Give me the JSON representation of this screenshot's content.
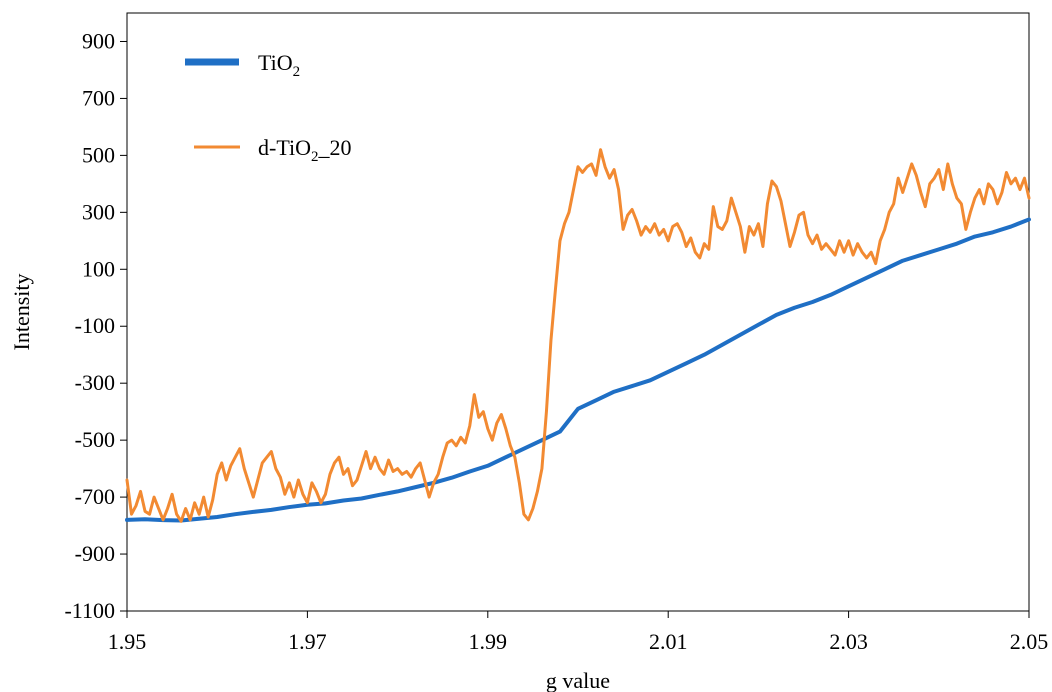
{
  "chart_data": {
    "type": "line",
    "xlabel": "g value",
    "ylabel": "Intensity",
    "xlim": [
      1.95,
      2.05
    ],
    "ylim": [
      -1100,
      1000
    ],
    "x_ticks": [
      1.95,
      1.97,
      1.99,
      2.01,
      2.03,
      2.05
    ],
    "x_tick_labels": [
      "1.95",
      "1.97",
      "1.99",
      "2.01",
      "2.03",
      "2.05"
    ],
    "y_ticks": [
      -1100,
      -900,
      -700,
      -500,
      -300,
      -100,
      100,
      300,
      500,
      700,
      900
    ],
    "y_tick_labels": [
      "-1100",
      "-900",
      "-700",
      "-500",
      "-300",
      "-100",
      "100",
      "300",
      "500",
      "700",
      "900"
    ],
    "grid": false,
    "legend_position": "top-left",
    "series": [
      {
        "name": "TiO2",
        "legend_main": "TiO",
        "legend_sub": "2",
        "legend_tail": "",
        "color": "#1f6fc5",
        "points": [
          [
            1.95,
            -780
          ],
          [
            1.952,
            -778
          ],
          [
            1.954,
            -781
          ],
          [
            1.956,
            -782
          ],
          [
            1.958,
            -776
          ],
          [
            1.96,
            -770
          ],
          [
            1.962,
            -760
          ],
          [
            1.964,
            -752
          ],
          [
            1.966,
            -745
          ],
          [
            1.968,
            -735
          ],
          [
            1.97,
            -727
          ],
          [
            1.972,
            -722
          ],
          [
            1.974,
            -712
          ],
          [
            1.976,
            -705
          ],
          [
            1.978,
            -692
          ],
          [
            1.98,
            -680
          ],
          [
            1.982,
            -665
          ],
          [
            1.984,
            -650
          ],
          [
            1.986,
            -632
          ],
          [
            1.988,
            -610
          ],
          [
            1.99,
            -590
          ],
          [
            1.992,
            -560
          ],
          [
            1.994,
            -530
          ],
          [
            1.996,
            -500
          ],
          [
            1.998,
            -470
          ],
          [
            2.0,
            -390
          ],
          [
            2.002,
            -360
          ],
          [
            2.004,
            -330
          ],
          [
            2.006,
            -310
          ],
          [
            2.008,
            -290
          ],
          [
            2.01,
            -260
          ],
          [
            2.012,
            -230
          ],
          [
            2.014,
            -200
          ],
          [
            2.016,
            -165
          ],
          [
            2.018,
            -130
          ],
          [
            2.02,
            -95
          ],
          [
            2.022,
            -60
          ],
          [
            2.024,
            -35
          ],
          [
            2.026,
            -15
          ],
          [
            2.028,
            10
          ],
          [
            2.03,
            40
          ],
          [
            2.032,
            70
          ],
          [
            2.034,
            100
          ],
          [
            2.036,
            130
          ],
          [
            2.038,
            150
          ],
          [
            2.04,
            170
          ],
          [
            2.042,
            190
          ],
          [
            2.044,
            215
          ],
          [
            2.046,
            230
          ],
          [
            2.048,
            250
          ],
          [
            2.05,
            275
          ]
        ]
      },
      {
        "name": "d-TiO2_20",
        "legend_main": "d-TiO",
        "legend_sub": "2",
        "legend_tail": "_20",
        "color": "#f28a32",
        "points": [
          [
            1.95,
            -640
          ],
          [
            1.9505,
            -760
          ],
          [
            1.951,
            -730
          ],
          [
            1.9515,
            -680
          ],
          [
            1.952,
            -750
          ],
          [
            1.9525,
            -760
          ],
          [
            1.953,
            -700
          ],
          [
            1.9535,
            -740
          ],
          [
            1.954,
            -780
          ],
          [
            1.9545,
            -740
          ],
          [
            1.955,
            -690
          ],
          [
            1.9555,
            -760
          ],
          [
            1.956,
            -785
          ],
          [
            1.9565,
            -740
          ],
          [
            1.957,
            -780
          ],
          [
            1.9575,
            -720
          ],
          [
            1.958,
            -760
          ],
          [
            1.9585,
            -700
          ],
          [
            1.959,
            -770
          ],
          [
            1.9595,
            -710
          ],
          [
            1.96,
            -620
          ],
          [
            1.9605,
            -580
          ],
          [
            1.961,
            -640
          ],
          [
            1.9615,
            -590
          ],
          [
            1.962,
            -560
          ],
          [
            1.9625,
            -530
          ],
          [
            1.963,
            -600
          ],
          [
            1.9635,
            -650
          ],
          [
            1.964,
            -700
          ],
          [
            1.9645,
            -640
          ],
          [
            1.965,
            -580
          ],
          [
            1.9655,
            -560
          ],
          [
            1.966,
            -540
          ],
          [
            1.9665,
            -600
          ],
          [
            1.967,
            -630
          ],
          [
            1.9675,
            -690
          ],
          [
            1.968,
            -650
          ],
          [
            1.9685,
            -700
          ],
          [
            1.969,
            -640
          ],
          [
            1.9695,
            -690
          ],
          [
            1.97,
            -720
          ],
          [
            1.9705,
            -650
          ],
          [
            1.971,
            -680
          ],
          [
            1.9715,
            -720
          ],
          [
            1.972,
            -690
          ],
          [
            1.9725,
            -620
          ],
          [
            1.973,
            -580
          ],
          [
            1.9735,
            -560
          ],
          [
            1.974,
            -620
          ],
          [
            1.9745,
            -600
          ],
          [
            1.975,
            -660
          ],
          [
            1.9755,
            -640
          ],
          [
            1.976,
            -590
          ],
          [
            1.9765,
            -540
          ],
          [
            1.977,
            -600
          ],
          [
            1.9775,
            -560
          ],
          [
            1.978,
            -600
          ],
          [
            1.9785,
            -620
          ],
          [
            1.979,
            -570
          ],
          [
            1.9795,
            -610
          ],
          [
            1.98,
            -600
          ],
          [
            1.9805,
            -620
          ],
          [
            1.981,
            -610
          ],
          [
            1.9815,
            -630
          ],
          [
            1.982,
            -600
          ],
          [
            1.9825,
            -580
          ],
          [
            1.983,
            -640
          ],
          [
            1.9835,
            -700
          ],
          [
            1.984,
            -650
          ],
          [
            1.9845,
            -620
          ],
          [
            1.985,
            -560
          ],
          [
            1.9855,
            -510
          ],
          [
            1.986,
            -500
          ],
          [
            1.9865,
            -520
          ],
          [
            1.987,
            -490
          ],
          [
            1.9875,
            -510
          ],
          [
            1.988,
            -450
          ],
          [
            1.9885,
            -340
          ],
          [
            1.989,
            -420
          ],
          [
            1.9895,
            -400
          ],
          [
            1.99,
            -460
          ],
          [
            1.9905,
            -500
          ],
          [
            1.991,
            -440
          ],
          [
            1.9915,
            -410
          ],
          [
            1.992,
            -460
          ],
          [
            1.9925,
            -520
          ],
          [
            1.993,
            -560
          ],
          [
            1.9935,
            -650
          ],
          [
            1.994,
            -760
          ],
          [
            1.9945,
            -780
          ],
          [
            1.995,
            -740
          ],
          [
            1.9955,
            -680
          ],
          [
            1.996,
            -600
          ],
          [
            1.9965,
            -400
          ],
          [
            1.997,
            -150
          ],
          [
            1.9975,
            30
          ],
          [
            1.998,
            200
          ],
          [
            1.9985,
            260
          ],
          [
            1.999,
            300
          ],
          [
            1.9995,
            380
          ],
          [
            2.0,
            460
          ],
          [
            2.0005,
            440
          ],
          [
            2.001,
            460
          ],
          [
            2.0015,
            470
          ],
          [
            2.002,
            430
          ],
          [
            2.0025,
            520
          ],
          [
            2.003,
            460
          ],
          [
            2.0035,
            420
          ],
          [
            2.004,
            450
          ],
          [
            2.0045,
            380
          ],
          [
            2.005,
            240
          ],
          [
            2.0055,
            290
          ],
          [
            2.006,
            310
          ],
          [
            2.0065,
            270
          ],
          [
            2.007,
            220
          ],
          [
            2.0075,
            250
          ],
          [
            2.008,
            230
          ],
          [
            2.0085,
            260
          ],
          [
            2.009,
            220
          ],
          [
            2.0095,
            240
          ],
          [
            2.01,
            200
          ],
          [
            2.0105,
            250
          ],
          [
            2.011,
            260
          ],
          [
            2.0115,
            230
          ],
          [
            2.012,
            180
          ],
          [
            2.0125,
            210
          ],
          [
            2.013,
            160
          ],
          [
            2.0135,
            140
          ],
          [
            2.014,
            190
          ],
          [
            2.0145,
            170
          ],
          [
            2.015,
            320
          ],
          [
            2.0155,
            250
          ],
          [
            2.016,
            240
          ],
          [
            2.0165,
            270
          ],
          [
            2.017,
            350
          ],
          [
            2.0175,
            300
          ],
          [
            2.018,
            250
          ],
          [
            2.0185,
            160
          ],
          [
            2.019,
            250
          ],
          [
            2.0195,
            220
          ],
          [
            2.02,
            260
          ],
          [
            2.0205,
            180
          ],
          [
            2.021,
            330
          ],
          [
            2.0215,
            410
          ],
          [
            2.022,
            390
          ],
          [
            2.0225,
            340
          ],
          [
            2.023,
            260
          ],
          [
            2.0235,
            180
          ],
          [
            2.024,
            230
          ],
          [
            2.0245,
            290
          ],
          [
            2.025,
            300
          ],
          [
            2.0255,
            220
          ],
          [
            2.026,
            190
          ],
          [
            2.0265,
            220
          ],
          [
            2.027,
            170
          ],
          [
            2.0275,
            190
          ],
          [
            2.028,
            170
          ],
          [
            2.0285,
            150
          ],
          [
            2.029,
            200
          ],
          [
            2.0295,
            160
          ],
          [
            2.03,
            200
          ],
          [
            2.0305,
            150
          ],
          [
            2.031,
            190
          ],
          [
            2.0315,
            160
          ],
          [
            2.032,
            140
          ],
          [
            2.0325,
            160
          ],
          [
            2.033,
            120
          ],
          [
            2.0335,
            200
          ],
          [
            2.034,
            240
          ],
          [
            2.0345,
            300
          ],
          [
            2.035,
            330
          ],
          [
            2.0355,
            420
          ],
          [
            2.036,
            370
          ],
          [
            2.0365,
            420
          ],
          [
            2.037,
            470
          ],
          [
            2.0375,
            430
          ],
          [
            2.038,
            370
          ],
          [
            2.0385,
            320
          ],
          [
            2.039,
            400
          ],
          [
            2.0395,
            420
          ],
          [
            2.04,
            450
          ],
          [
            2.0405,
            380
          ],
          [
            2.041,
            470
          ],
          [
            2.0415,
            400
          ],
          [
            2.042,
            350
          ],
          [
            2.0425,
            330
          ],
          [
            2.043,
            240
          ],
          [
            2.0435,
            300
          ],
          [
            2.044,
            350
          ],
          [
            2.0445,
            380
          ],
          [
            2.045,
            330
          ],
          [
            2.0455,
            400
          ],
          [
            2.046,
            380
          ],
          [
            2.0465,
            330
          ],
          [
            2.047,
            370
          ],
          [
            2.0475,
            440
          ],
          [
            2.048,
            400
          ],
          [
            2.0485,
            420
          ],
          [
            2.049,
            380
          ],
          [
            2.0495,
            420
          ],
          [
            2.05,
            350
          ]
        ]
      }
    ]
  }
}
